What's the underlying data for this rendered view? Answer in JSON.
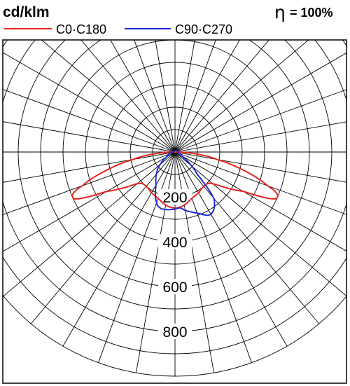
{
  "header": {
    "unit": "cd/klm",
    "efficiency_symbol": "η",
    "efficiency_value": "= 100%"
  },
  "chart_data": {
    "type": "polar",
    "unit": "cd/klm",
    "radial_max": 1000,
    "radial_step": 100,
    "radial_tick_labels": [
      "200",
      "400",
      "600",
      "800"
    ],
    "radial_tick_values": [
      200,
      400,
      600,
      800
    ],
    "angular_step_deg": 10,
    "grid": true,
    "legend_position": "top",
    "series": [
      {
        "name": "C0·C180",
        "color": "#e8231f",
        "angles_deg": [
          -180,
          -100,
          -90,
          -80,
          -75,
          -70,
          -68,
          -66,
          -65,
          -60,
          -50,
          -40,
          -30,
          -20,
          -10,
          0,
          10,
          20,
          30,
          40,
          50,
          60,
          65,
          66,
          68,
          70,
          75,
          80,
          90,
          100,
          180
        ],
        "values": [
          5,
          8,
          15,
          190,
          320,
          440,
          490,
          500,
          495,
          350,
          220,
          200,
          210,
          220,
          240,
          250,
          240,
          220,
          210,
          200,
          220,
          350,
          495,
          500,
          490,
          440,
          320,
          190,
          15,
          8,
          5
        ]
      },
      {
        "name": "C90·C270",
        "color": "#1e2bd6",
        "angles_deg": [
          -180,
          -90,
          -60,
          -45,
          -30,
          -20,
          -15,
          -10,
          0,
          5,
          10,
          20,
          30,
          40,
          45,
          60,
          90,
          180
        ],
        "values": [
          5,
          10,
          45,
          110,
          170,
          240,
          258,
          260,
          255,
          250,
          265,
          290,
          320,
          270,
          140,
          30,
          12,
          5
        ]
      }
    ]
  }
}
